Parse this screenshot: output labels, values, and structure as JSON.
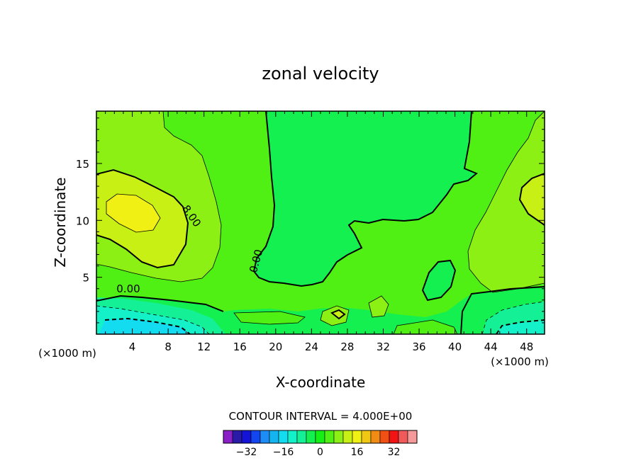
{
  "chart_data": {
    "type": "heatmap",
    "title": "zonal velocity",
    "xlabel": "X-coordinate",
    "ylabel": "Z-coordinate",
    "x_unit_left": "(×1000 m)",
    "x_unit_right": "(×1000 m)",
    "xlim": [
      0,
      50
    ],
    "ylim": [
      0,
      19.6
    ],
    "x_ticks": [
      "4",
      "8",
      "12",
      "16",
      "20",
      "24",
      "28",
      "32",
      "36",
      "40",
      "44",
      "48"
    ],
    "y_ticks": [
      "5",
      "10",
      "15"
    ],
    "contour_interval_text": "CONTOUR INTERVAL = 4.000E+00",
    "contour_labels": [
      "8.00",
      "0.00",
      "0.00"
    ],
    "colorbar": {
      "levels": [
        -38,
        -34,
        -30,
        -26,
        -22,
        -18,
        -14,
        -10,
        -6,
        -2,
        2,
        6,
        10,
        14,
        18,
        22,
        26,
        30,
        34,
        38
      ],
      "tick_values": [
        -32,
        -16,
        0,
        16,
        32
      ],
      "tick_labels": [
        "−32",
        "−16",
        "0",
        "16",
        "32"
      ],
      "colors": [
        "#8a1fc8",
        "#2a1aa8",
        "#1414d8",
        "#1446f0",
        "#1e8cf5",
        "#14b4f0",
        "#14dcf0",
        "#14f0c8",
        "#14f096",
        "#14f050",
        "#14f014",
        "#50f014",
        "#8cf014",
        "#c8f014",
        "#f0f014",
        "#f0c814",
        "#f08c14",
        "#f05014",
        "#f01414",
        "#f05a5a",
        "#f59a9a"
      ]
    }
  }
}
